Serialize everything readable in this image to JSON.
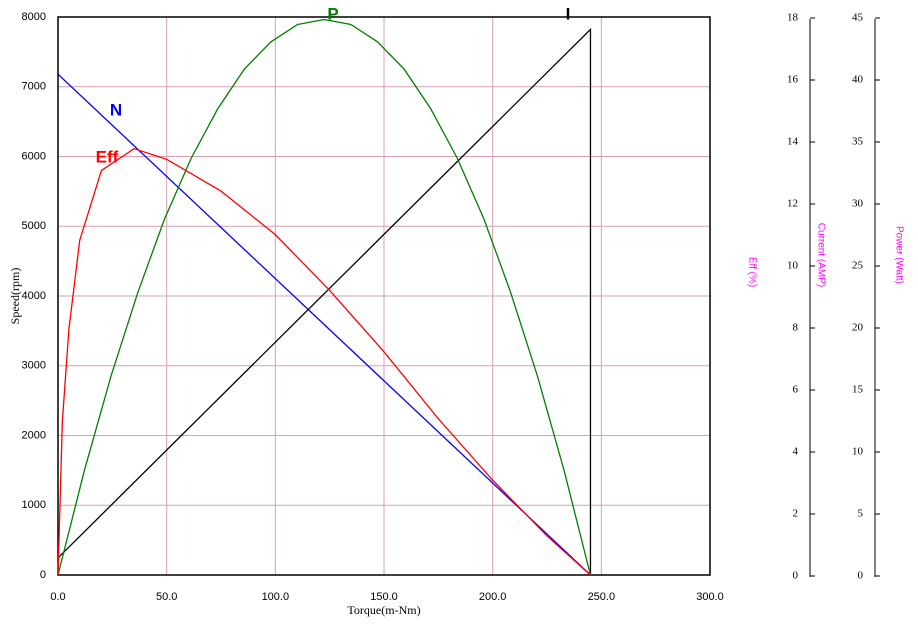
{
  "chart_data": {
    "type": "line",
    "xlabel": "Torque(m-Nm)",
    "ylabel": "Speed(rpm)",
    "y2label": "Current (AMP)",
    "y3label": "Power (Watt)",
    "y4label": "Eff  (%)",
    "xlim": [
      0,
      300
    ],
    "xticks": [
      {
        "value": 0,
        "label": "0.0"
      },
      {
        "value": 50,
        "label": "50.0"
      },
      {
        "value": 100,
        "label": "100.0"
      },
      {
        "value": 150,
        "label": "150.0"
      },
      {
        "value": 200,
        "label": "200.0"
      },
      {
        "value": 250,
        "label": "250.0"
      },
      {
        "value": 300,
        "label": "300.0"
      }
    ],
    "ylim": [
      0,
      8000
    ],
    "yticks": [
      0,
      1000,
      2000,
      3000,
      4000,
      5000,
      6000,
      7000,
      8000
    ],
    "y2lim": [
      0,
      18
    ],
    "y2ticks": [
      0,
      2,
      4,
      6,
      8,
      10,
      12,
      14,
      16,
      18
    ],
    "y3lim": [
      0,
      45
    ],
    "y3ticks": [
      0,
      5,
      10,
      15,
      20,
      25,
      30,
      35,
      40,
      45
    ],
    "y4lim": [
      0,
      100
    ],
    "grid": true,
    "series": [
      {
        "name": "N",
        "color": "#0000ff",
        "axis": "y",
        "x": [
          0,
          245
        ],
        "values": [
          7180,
          0
        ]
      },
      {
        "name": "I",
        "color": "#000000",
        "axis": "y2",
        "x": [
          0,
          245,
          245
        ],
        "values": [
          0.55,
          17.6,
          0
        ]
      },
      {
        "name": "P",
        "color": "#007f00",
        "axis": "y3",
        "x": [
          0,
          12.25,
          24.5,
          36.75,
          49,
          61.25,
          73.5,
          85.75,
          98,
          110.25,
          122.5,
          134.75,
          147,
          159.25,
          171.5,
          183.75,
          196,
          208.25,
          220.5,
          232.75,
          245
        ],
        "values": [
          0,
          8.5,
          16.1,
          22.8,
          28.7,
          33.6,
          37.6,
          40.8,
          43,
          44.4,
          44.8,
          44.4,
          43,
          40.8,
          37.6,
          33.6,
          28.7,
          22.8,
          16.1,
          8.5,
          0
        ]
      },
      {
        "name": "Eff",
        "color": "#ff0000",
        "axis": "y4",
        "x": [
          0,
          2,
          5,
          10,
          20,
          35,
          50,
          75,
          100,
          125,
          150,
          175,
          200,
          225,
          245
        ],
        "values": [
          0,
          27.5,
          44,
          60,
          72.5,
          76.4,
          74.5,
          68.8,
          61,
          51,
          40,
          28,
          17,
          7,
          0
        ]
      }
    ]
  }
}
